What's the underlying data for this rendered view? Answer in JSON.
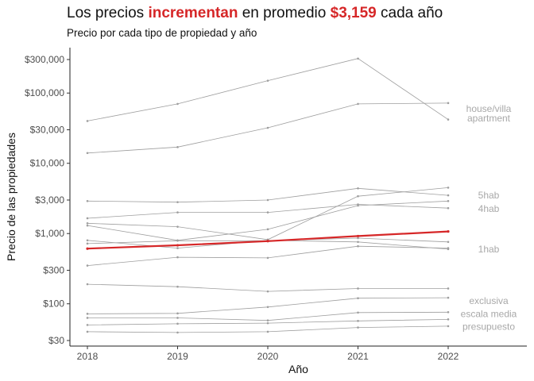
{
  "title": {
    "part1": "Los precios ",
    "highlight1": "incrementan",
    "part2": " en promedio ",
    "highlight2": "$3,159",
    "part3": " cada año"
  },
  "subtitle": "Precio por cada tipo de propiedad y año",
  "colors": {
    "accent": "#d62728",
    "series": "#9e9e9e",
    "labels": "#a8a8a8"
  },
  "chart_data": {
    "type": "line",
    "x": [
      2018,
      2019,
      2020,
      2021,
      2022
    ],
    "xlabel": "Año",
    "ylabel": "Precio de las propiedades",
    "yscale": "log",
    "ylim": [
      25,
      500000
    ],
    "y_ticks": [
      {
        "value": 30,
        "label": "$30"
      },
      {
        "value": 100,
        "label": "$100"
      },
      {
        "value": 300,
        "label": "$300"
      },
      {
        "value": 1000,
        "label": "$1,000"
      },
      {
        "value": 3000,
        "label": "$3,000"
      },
      {
        "value": 10000,
        "label": "$10,000"
      },
      {
        "value": 30000,
        "label": "$30,000"
      },
      {
        "value": 100000,
        "label": "$100,000"
      },
      {
        "value": 300000,
        "label": "$300,000"
      }
    ],
    "grid": false,
    "series": [
      {
        "values": [
          40000,
          70000,
          150000,
          310000,
          42000
        ]
      },
      {
        "values": [
          14000,
          17000,
          32000,
          70000,
          72000
        ]
      },
      {
        "values": [
          2900,
          2800,
          3000,
          4400,
          3500
        ]
      },
      {
        "values": [
          1650,
          2000,
          2000,
          2600,
          2300
        ]
      },
      {
        "values": [
          1400,
          1250,
          820,
          3400,
          4500
        ]
      },
      {
        "values": [
          1300,
          800,
          1150,
          2500,
          2900
        ]
      },
      {
        "values": [
          800,
          620,
          800,
          760,
          600
        ]
      },
      {
        "values": [
          720,
          790,
          790,
          860,
          760
        ]
      },
      {
        "values": [
          350,
          460,
          450,
          660,
          620
        ]
      },
      {
        "values": [
          190,
          175,
          150,
          165,
          165
        ]
      },
      {
        "values": [
          72,
          73,
          90,
          120,
          122
        ]
      },
      {
        "values": [
          63,
          63,
          58,
          75,
          76
        ]
      },
      {
        "values": [
          50,
          52,
          53,
          57,
          60
        ]
      },
      {
        "values": [
          40,
          39,
          40,
          46,
          48
        ]
      },
      {
        "values": [
          610,
          680,
          780,
          920,
          1070
        ],
        "highlight": true
      }
    ],
    "labels": [
      {
        "text": "house/villa",
        "value": 60000
      },
      {
        "text": "apartment",
        "value": 44000
      },
      {
        "text": "5hab",
        "value": 3500
      },
      {
        "text": "4hab",
        "value": 2250
      },
      {
        "text": "1hab",
        "value": 600
      },
      {
        "text": "exclusiva",
        "value": 110
      },
      {
        "text": "escala media",
        "value": 72
      },
      {
        "text": "presupuesto",
        "value": 47
      }
    ]
  }
}
